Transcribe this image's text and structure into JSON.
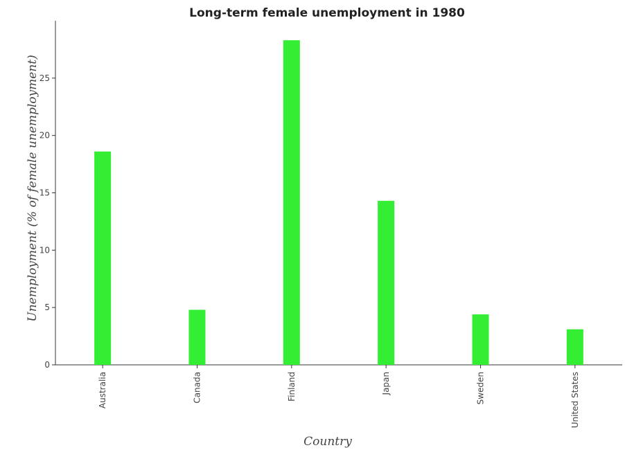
{
  "chart_data": {
    "type": "bar",
    "title": "Long-term female unemployment in 1980",
    "xlabel": "Country",
    "ylabel": "Unemployment (% of female unemployment)",
    "categories": [
      "Australia",
      "Canada",
      "Finland",
      "Japan",
      "Sweden",
      "United States"
    ],
    "values": [
      18.6,
      4.8,
      28.3,
      14.3,
      4.4,
      3.1
    ],
    "ylim": [
      0,
      30
    ],
    "yticks": [
      0,
      5,
      10,
      15,
      20,
      25
    ],
    "bar_color": "#33ee33",
    "grid": false,
    "legend": "none"
  }
}
